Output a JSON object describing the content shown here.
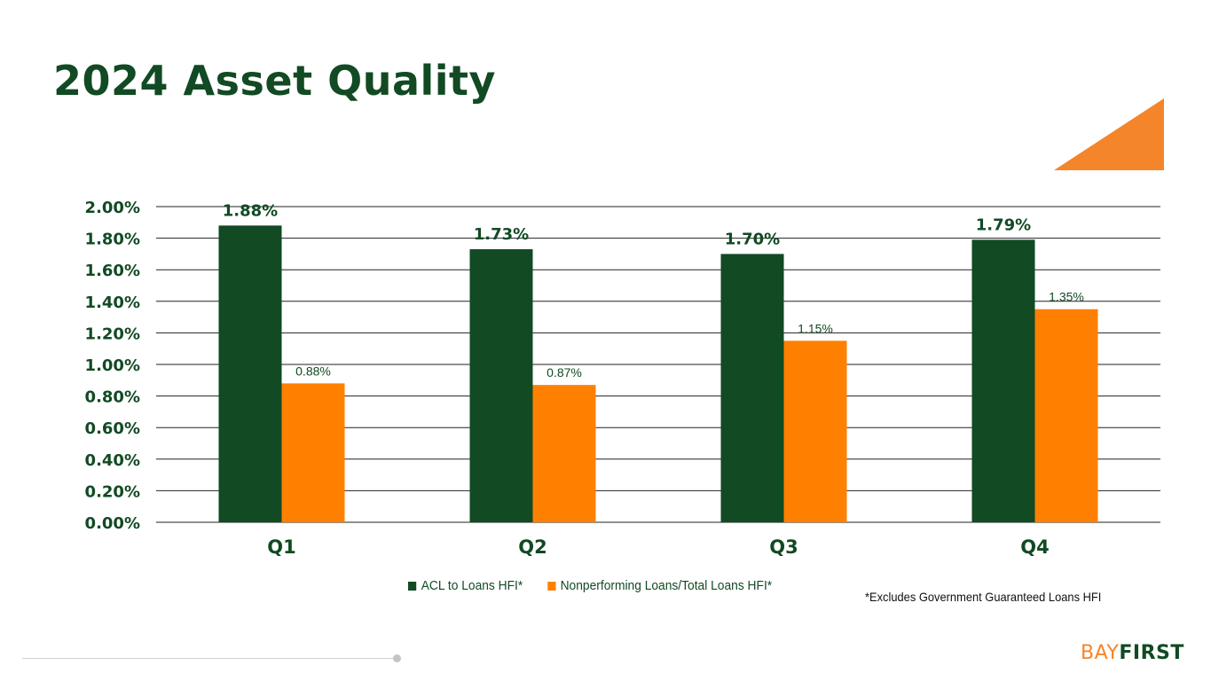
{
  "slide": {
    "title": "2024 Asset Quality",
    "footnote": "*Excludes Government Guaranteed Loans HFI",
    "logo": {
      "part1": "BAY",
      "part2": "FIRST"
    }
  },
  "colors": {
    "dark_green": "#114a23",
    "orange": "#ff8000",
    "accent_orange": "#f5852a",
    "gridline": "#222222"
  },
  "chart_data": {
    "type": "bar",
    "title": "2024 Asset Quality",
    "xlabel": "",
    "ylabel": "",
    "categories": [
      "Q1",
      "Q2",
      "Q3",
      "Q4"
    ],
    "series": [
      {
        "name": "ACL to Loans HFI*",
        "values": [
          1.88,
          1.73,
          1.7,
          1.79
        ],
        "labels": [
          "1.88%",
          "1.73%",
          "1.70%",
          "1.79%"
        ],
        "color": "#114a23"
      },
      {
        "name": "Nonperforming Loans/Total Loans HFI*",
        "values": [
          0.88,
          0.87,
          1.15,
          1.35
        ],
        "labels": [
          "0.88%",
          "0.87%",
          "1.15%",
          "1.35%"
        ],
        "color": "#ff8000"
      }
    ],
    "ylim": [
      0,
      2.0
    ],
    "yticks": [
      0,
      0.2,
      0.4,
      0.6,
      0.8,
      1.0,
      1.2,
      1.4,
      1.6,
      1.8,
      2.0
    ],
    "ytick_labels": [
      "0.00%",
      "0.20%",
      "0.40%",
      "0.60%",
      "0.80%",
      "1.00%",
      "1.20%",
      "1.40%",
      "1.60%",
      "1.80%",
      "2.00%"
    ],
    "grid": true,
    "legend_position": "bottom"
  }
}
